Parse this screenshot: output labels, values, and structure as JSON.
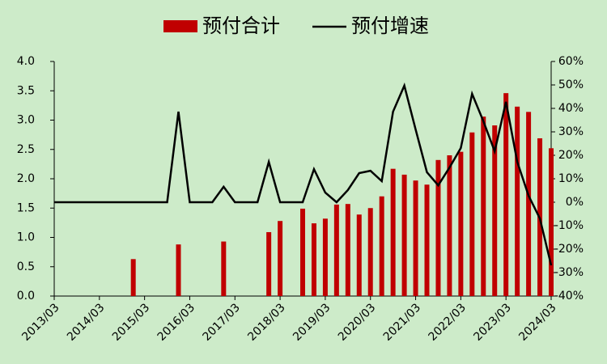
{
  "chart_data": {
    "type": "bar_line",
    "categories": [
      "2013/03",
      null,
      null,
      null,
      "2014/03",
      null,
      null,
      null,
      "2015/03",
      null,
      null,
      null,
      "2016/03",
      null,
      null,
      null,
      "2017/03",
      null,
      null,
      null,
      "2018/03",
      null,
      null,
      null,
      "2019/03",
      null,
      null,
      null,
      "2020/03",
      null,
      null,
      null,
      "2021/03",
      null,
      null,
      null,
      "2022/03",
      null,
      null,
      null,
      "2023/03",
      null,
      null,
      null,
      "2024/03"
    ],
    "series": [
      {
        "name": "预付合计",
        "type": "bar",
        "color": "#c00000",
        "axis": "y",
        "values": [
          null,
          null,
          null,
          null,
          null,
          null,
          null,
          0.63,
          null,
          null,
          null,
          0.88,
          null,
          null,
          null,
          0.93,
          null,
          null,
          null,
          1.09,
          1.28,
          null,
          1.49,
          1.24,
          1.32,
          1.56,
          1.57,
          1.39,
          1.5,
          1.7,
          2.17,
          2.07,
          1.97,
          1.9,
          2.32,
          2.4,
          2.46,
          2.79,
          3.06,
          2.91,
          3.46,
          3.23,
          3.14,
          2.69,
          2.52
        ]
      },
      {
        "name": "预付增速",
        "type": "line",
        "color": "#000000",
        "axis": "y2",
        "values": [
          0,
          0,
          0,
          0,
          0,
          0,
          0,
          0,
          0,
          0,
          0,
          38.6,
          0,
          0,
          0,
          6.6,
          0,
          0,
          0,
          17.2,
          0,
          0,
          0,
          14.1,
          4.1,
          0,
          5.2,
          12.4,
          13.4,
          9.0,
          38.6,
          49.7,
          31.0,
          12.8,
          7.2,
          14.8,
          23.1,
          46.2,
          34.5,
          21.7,
          42.8,
          17.2,
          2.8,
          -6.9,
          -26.9
        ]
      }
    ],
    "ylim": [
      0,
      4
    ],
    "yticks": [
      {
        "value": 0,
        "label": "0.0"
      },
      {
        "value": 0.5,
        "label": "0.5"
      },
      {
        "value": 1,
        "label": "1.0"
      },
      {
        "value": 1.5,
        "label": "1.5"
      },
      {
        "value": 2,
        "label": "2.0"
      },
      {
        "value": 2.5,
        "label": "2.5"
      },
      {
        "value": 3,
        "label": "3.0"
      },
      {
        "value": 3.5,
        "label": "3.5"
      },
      {
        "value": 4,
        "label": "4.0"
      }
    ],
    "y2lim": [
      -40,
      60
    ],
    "y2ticks": [
      {
        "value": -40,
        "label": "-40%"
      },
      {
        "value": -30,
        "label": "-30%"
      },
      {
        "value": -20,
        "label": "-20%"
      },
      {
        "value": -10,
        "label": "-10%"
      },
      {
        "value": 0,
        "label": "0%"
      },
      {
        "value": 10,
        "label": "10%"
      },
      {
        "value": 20,
        "label": "20%"
      },
      {
        "value": 30,
        "label": "30%"
      },
      {
        "value": 40,
        "label": "40%"
      },
      {
        "value": 50,
        "label": "50%"
      },
      {
        "value": 60,
        "label": "60%"
      }
    ],
    "legend": "top",
    "grid": false
  }
}
